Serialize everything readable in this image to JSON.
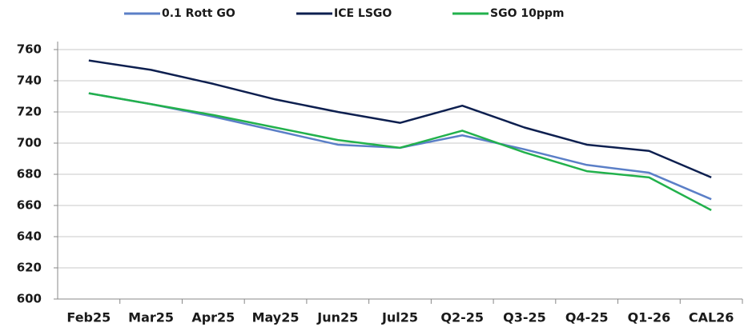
{
  "chart_data": {
    "type": "line",
    "categories": [
      "Feb25",
      "Mar25",
      "Apr25",
      "May25",
      "Jun25",
      "Jul25",
      "Q2-25",
      "Q3-25",
      "Q4-25",
      "Q1-26",
      "CAL26"
    ],
    "series": [
      {
        "name": "0.1 Rott GO",
        "color": "#5b7fc7",
        "values": [
          732,
          725,
          717,
          708,
          699,
          697,
          705,
          696,
          686,
          681,
          664
        ]
      },
      {
        "name": "ICE LSGO",
        "color": "#0d1f4f",
        "values": [
          753,
          747,
          738,
          728,
          720,
          713,
          724,
          710,
          699,
          695,
          678
        ]
      },
      {
        "name": "SGO 10ppm",
        "color": "#22b14c",
        "values": [
          732,
          725,
          718,
          710,
          702,
          697,
          708,
          694,
          682,
          678,
          657
        ]
      }
    ],
    "ylim": [
      600,
      760
    ],
    "yticks": [
      600,
      620,
      640,
      660,
      680,
      700,
      720,
      740,
      760
    ],
    "grid": true,
    "legend": "top"
  }
}
